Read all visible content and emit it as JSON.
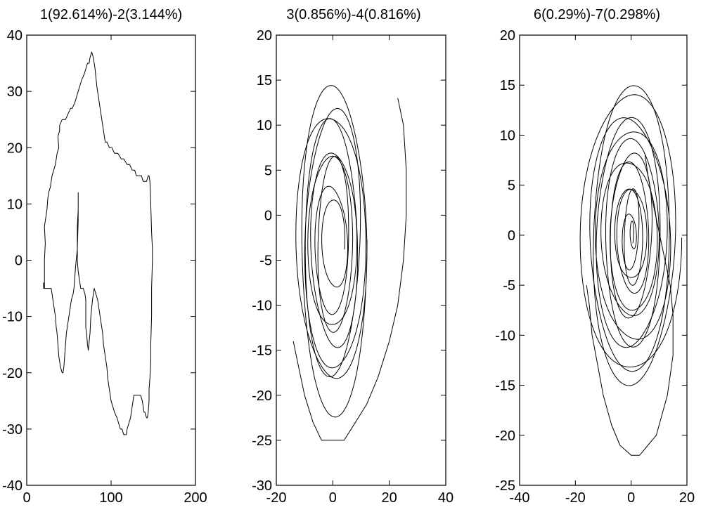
{
  "chart_data": [
    {
      "type": "line",
      "title": "1(92.614%)-2(3.144%)",
      "xlim": [
        0,
        200
      ],
      "ylim": [
        -40,
        40
      ],
      "xticks": [
        0,
        100,
        200
      ],
      "yticks": [
        -40,
        -30,
        -20,
        -10,
        0,
        10,
        20,
        30,
        40
      ],
      "grid": false,
      "series": [
        {
          "x": [
            21,
            21,
            22,
            21,
            24,
            25,
            26,
            28,
            30,
            32,
            34,
            35,
            36,
            38,
            37,
            39,
            39,
            42,
            44,
            46,
            49,
            52,
            54,
            57,
            59,
            61,
            63,
            65,
            68,
            70,
            72,
            74,
            75,
            77,
            79,
            81,
            83,
            85,
            87,
            89,
            91,
            93,
            95,
            98,
            101,
            104,
            108,
            112,
            115,
            119,
            122,
            125,
            128,
            130,
            132,
            134,
            136,
            138,
            140,
            142,
            144,
            145,
            146,
            147,
            148,
            149,
            149,
            148,
            148,
            147,
            147,
            146,
            145,
            145,
            144,
            143,
            142,
            140,
            139,
            138,
            137,
            135,
            133,
            131,
            129,
            127,
            125,
            123,
            121,
            119,
            118,
            117,
            115,
            113,
            111,
            109,
            107,
            104,
            102,
            100,
            98,
            96,
            95,
            93,
            91,
            90,
            88,
            86,
            84,
            82,
            80,
            78,
            76,
            75,
            73,
            72,
            71,
            70,
            70,
            70,
            70,
            69,
            67,
            66,
            65,
            64,
            63,
            63,
            62,
            61,
            60,
            60,
            60,
            61,
            61,
            61,
            60,
            58,
            57,
            56,
            55,
            53,
            52,
            51,
            49,
            47,
            46,
            45,
            44,
            43,
            42,
            40,
            39,
            38,
            37,
            36,
            35,
            34,
            33,
            32,
            31,
            30,
            29,
            28,
            27,
            26,
            25,
            24,
            23,
            22,
            21,
            20,
            20,
            21
          ],
          "y": [
            -5,
            0,
            3,
            6,
            9,
            11,
            12,
            13,
            15,
            16,
            17,
            18,
            19,
            20,
            22,
            23,
            24,
            25,
            25,
            25,
            26,
            27,
            27,
            28,
            29,
            30,
            31,
            32,
            33,
            34,
            35,
            35,
            36,
            37,
            36,
            34,
            31,
            29,
            27,
            25,
            23,
            21,
            21,
            20,
            20,
            19,
            19,
            18,
            18,
            17,
            17,
            16,
            16,
            15,
            15,
            15,
            15,
            14,
            14,
            14,
            15,
            15,
            14,
            10,
            5,
            2,
            0,
            -5,
            -10,
            -15,
            -18,
            -21,
            -23,
            -25,
            -27,
            -28,
            -28,
            -27,
            -27,
            -26,
            -25,
            -24,
            -24,
            -24,
            -24,
            -24,
            -26,
            -28,
            -29,
            -30,
            -31,
            -31,
            -31,
            -30,
            -30,
            -29,
            -28,
            -27,
            -26,
            -25,
            -23,
            -21,
            -19,
            -17,
            -15,
            -13,
            -11,
            -9,
            -7,
            -6,
            -5,
            -7,
            -10,
            -13,
            -16,
            -15,
            -13,
            -12,
            -10,
            -8,
            -7,
            -6,
            -5,
            -5,
            -5,
            -5,
            -4,
            -4,
            -3,
            -2,
            0,
            3,
            6,
            9,
            12,
            7,
            2,
            -1,
            -3,
            -5,
            -6,
            -7,
            -8,
            -9,
            -11,
            -13,
            -15,
            -17,
            -19,
            -20,
            -20,
            -19,
            -18,
            -17,
            -15,
            -13,
            -12,
            -10,
            -9,
            -8,
            -7,
            -6,
            -5,
            -5,
            -5,
            -5,
            -5,
            -5,
            -5,
            -5,
            -5,
            -5,
            -4,
            -5
          ]
        }
      ]
    },
    {
      "type": "line",
      "title": "3(0.856%)-4(0.816%)",
      "xlim": [
        -20,
        40
      ],
      "ylim": [
        -30,
        20
      ],
      "xticks": [
        -20,
        0,
        20,
        40
      ],
      "yticks": [
        -30,
        -25,
        -20,
        -15,
        -10,
        -5,
        0,
        5,
        10,
        15,
        20
      ],
      "grid": false,
      "spiral": {
        "cx": 0,
        "cy": -3,
        "rx_start": 4,
        "rx_end": 13,
        "ry_start": 5,
        "ry_end": 18,
        "turns": 9
      },
      "series": [
        {
          "x": [
            23,
            25,
            26,
            26,
            25,
            23,
            20,
            16,
            12,
            8,
            4,
            0,
            -4,
            -7,
            -10,
            -12,
            -14
          ],
          "y": [
            13,
            10,
            5,
            0,
            -5,
            -10,
            -14,
            -18,
            -21,
            -23,
            -25,
            -25,
            -25,
            -23,
            -20,
            -17,
            -14
          ]
        }
      ]
    },
    {
      "type": "line",
      "title": "6(0.29%)-7(0.298%)",
      "xlim": [
        -40,
        20
      ],
      "ylim": [
        -25,
        20
      ],
      "xticks": [
        -40,
        -20,
        0,
        20
      ],
      "yticks": [
        -25,
        -20,
        -15,
        -10,
        -5,
        0,
        5,
        10,
        15,
        20
      ],
      "grid": false,
      "spiral": {
        "cx": 0,
        "cy": 0,
        "rx_start": 0.6,
        "rx_end": 17,
        "ry_start": 1.5,
        "ry_end": 15,
        "turns": 14
      },
      "series": [
        {
          "x": [
            5,
            6,
            8,
            11,
            14,
            15,
            15,
            14,
            13,
            11,
            9,
            6,
            3,
            0,
            -4,
            -7,
            -10,
            -12,
            -14,
            -15,
            -16
          ],
          "y": [
            8,
            6,
            3,
            -1,
            -5,
            -8,
            -12,
            -14,
            -16,
            -18,
            -20,
            -21,
            -22,
            -22,
            -21,
            -19,
            -16,
            -13,
            -10,
            -7,
            -5
          ]
        }
      ]
    }
  ]
}
